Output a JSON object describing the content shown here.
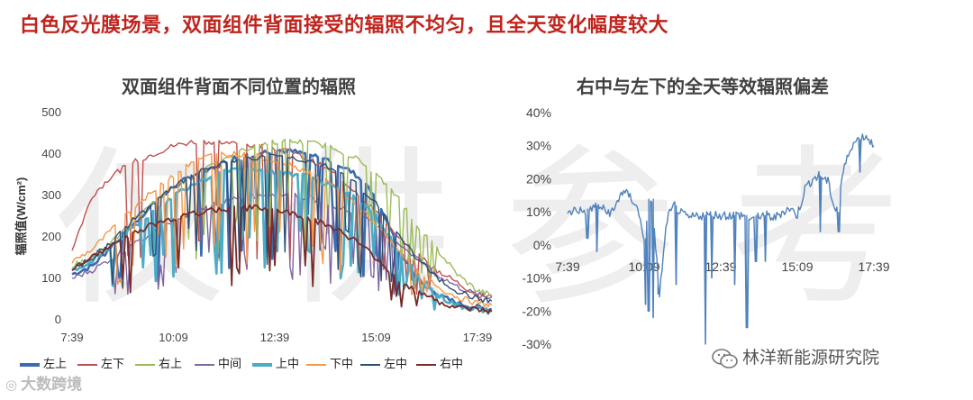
{
  "headline": "白色反光膜场景，双面组件背面接受的辐照不均匀，且全天变化幅度较大",
  "watermark": "仅供参考",
  "source_left": "大数跨境",
  "source_right": "林洋新能源研究院",
  "chart_data": [
    {
      "type": "line",
      "title": "双面组件背面不同位置的辐照",
      "ylabel": "辐照值(W/cm²)",
      "xlabel": "",
      "ylim": [
        0,
        500
      ],
      "yticks": [
        "500",
        "400",
        "300",
        "200",
        "100",
        "0"
      ],
      "xticks": [
        "7:39",
        "10:09",
        "12:39",
        "15:09",
        "17:39"
      ],
      "x_hours": [
        7.65,
        8.15,
        8.65,
        9.15,
        9.65,
        10.15,
        10.65,
        11.15,
        11.65,
        12.15,
        12.65,
        13.15,
        13.65,
        14.15,
        14.65,
        15.15,
        15.65,
        16.15,
        16.65,
        17.15,
        17.65,
        18.0
      ],
      "series": [
        {
          "name": "左上",
          "color": "#3c6bb0",
          "width": 2.6,
          "values": [
            110,
            130,
            180,
            230,
            280,
            320,
            350,
            370,
            390,
            400,
            410,
            405,
            395,
            380,
            350,
            300,
            180,
            100,
            60,
            40,
            30,
            25
          ]
        },
        {
          "name": "左下",
          "color": "#c0504d",
          "width": 1.4,
          "values": [
            170,
            300,
            350,
            380,
            400,
            420,
            430,
            430,
            425,
            420,
            415,
            400,
            380,
            350,
            310,
            260,
            200,
            160,
            120,
            90,
            60,
            55
          ]
        },
        {
          "name": "右上",
          "color": "#9bbb59",
          "width": 1.4,
          "values": [
            130,
            150,
            190,
            240,
            280,
            320,
            350,
            380,
            400,
            420,
            430,
            430,
            425,
            415,
            390,
            350,
            300,
            230,
            170,
            110,
            70,
            60
          ]
        },
        {
          "name": "中间",
          "color": "#8064a2",
          "width": 1.4,
          "values": [
            100,
            120,
            150,
            180,
            210,
            240,
            260,
            280,
            290,
            300,
            305,
            300,
            290,
            275,
            255,
            230,
            190,
            150,
            110,
            80,
            60,
            55
          ]
        },
        {
          "name": "上中",
          "color": "#4bacc6",
          "width": 2.6,
          "values": [
            120,
            140,
            180,
            220,
            260,
            300,
            330,
            350,
            360,
            360,
            355,
            350,
            340,
            320,
            290,
            250,
            170,
            110,
            60,
            35,
            25,
            20
          ]
        },
        {
          "name": "下中",
          "color": "#f79646",
          "width": 1.4,
          "values": [
            140,
            170,
            220,
            270,
            310,
            350,
            380,
            400,
            400,
            395,
            385,
            370,
            350,
            320,
            280,
            230,
            170,
            120,
            80,
            55,
            40,
            35
          ]
        },
        {
          "name": "左中",
          "color": "#2c4d75",
          "width": 1.4,
          "values": [
            120,
            150,
            190,
            240,
            280,
            320,
            350,
            370,
            385,
            390,
            395,
            390,
            380,
            360,
            330,
            280,
            210,
            150,
            100,
            70,
            50,
            45
          ]
        },
        {
          "name": "右中",
          "color": "#772c2a",
          "width": 1.8,
          "values": [
            120,
            150,
            180,
            210,
            230,
            245,
            255,
            265,
            270,
            270,
            265,
            255,
            240,
            220,
            190,
            150,
            100,
            70,
            45,
            30,
            25,
            20
          ]
        }
      ]
    },
    {
      "type": "line",
      "title": "右中与左下的全天等效辐照偏差",
      "ylim": [
        -0.3,
        0.4
      ],
      "yticks": [
        "40%",
        "30%",
        "20%",
        "10%",
        "0%",
        "-10%",
        "-20%",
        "-30%"
      ],
      "xticks": [
        "7:39",
        "10:09",
        "12:39",
        "15:09",
        "17:39"
      ],
      "x_hours": [
        7.65,
        7.9,
        8.15,
        8.4,
        8.65,
        8.9,
        9.15,
        9.4,
        9.65,
        9.9,
        10.15,
        10.4,
        10.65,
        10.9,
        11.15,
        11.4,
        11.65,
        11.9,
        12.15,
        12.4,
        12.65,
        12.9,
        13.15,
        13.4,
        13.65,
        13.9,
        14.15,
        14.4,
        14.65,
        14.9,
        15.15,
        15.4,
        15.65,
        15.9,
        16.15,
        16.4,
        16.65,
        16.9,
        17.15,
        17.4,
        17.65
      ],
      "series": [
        {
          "name": "",
          "color": "#4f81bd",
          "values": [
            0.09,
            0.11,
            0.1,
            0.11,
            0.12,
            0.1,
            0.1,
            0.16,
            0.15,
            0.12,
            0.02,
            0.14,
            -0.15,
            0.08,
            0.12,
            0.09,
            0.08,
            0.09,
            0.09,
            0.09,
            0.09,
            0.09,
            0.09,
            0.09,
            0.08,
            0.09,
            0.09,
            0.08,
            0.1,
            0.11,
            0.09,
            0.17,
            0.2,
            0.21,
            0.19,
            0.1,
            0.22,
            0.3,
            0.32,
            0.33,
            0.3
          ]
        }
      ],
      "spikes": [
        {
          "x": 8.3,
          "y": 0.02
        },
        {
          "x": 8.6,
          "y": -0.02
        },
        {
          "x": 10.2,
          "y": -0.18
        },
        {
          "x": 10.3,
          "y": -0.2
        },
        {
          "x": 10.45,
          "y": -0.22
        },
        {
          "x": 10.6,
          "y": -0.12
        },
        {
          "x": 11.2,
          "y": -0.12
        },
        {
          "x": 12.15,
          "y": -0.3
        },
        {
          "x": 12.35,
          "y": -0.1
        },
        {
          "x": 13.1,
          "y": -0.12
        },
        {
          "x": 13.5,
          "y": -0.25
        },
        {
          "x": 13.8,
          "y": -0.05
        },
        {
          "x": 14.1,
          "y": -0.05
        },
        {
          "x": 15.9,
          "y": 0.04
        },
        {
          "x": 16.5,
          "y": 0.04
        },
        {
          "x": 17.2,
          "y": 0.22
        }
      ]
    }
  ]
}
